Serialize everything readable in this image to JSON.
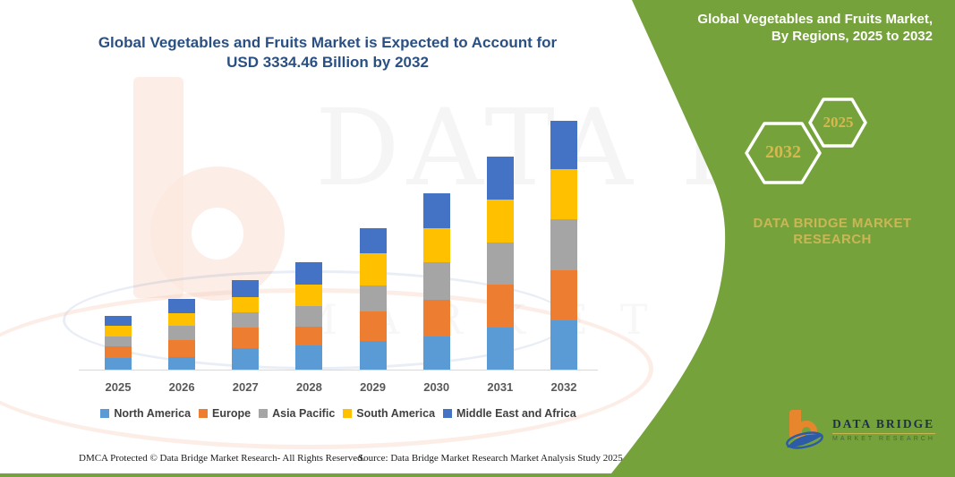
{
  "main_title": {
    "line1": "Global Vegetables and Fruits Market is Expected to Account for",
    "line2": "USD 3334.46 Billion by 2032"
  },
  "panel": {
    "title_line1": "Global Vegetables and Fruits Market,",
    "title_line2": "By Regions, 2025 to 2032",
    "hexagons": [
      {
        "label": "2032"
      },
      {
        "label": "2025"
      }
    ],
    "brand": "DATA BRIDGE MARKET RESEARCH",
    "background_color": "#76a23c",
    "accent_gold": "#c9b654"
  },
  "watermark": {
    "line1": "DATA BRIDGE",
    "line2": "MARKET RESEARCH"
  },
  "logo": {
    "name": "DATA BRIDGE",
    "sub": "MARKET RESEARCH",
    "orange": "#e8862e",
    "blue": "#2c5ba7"
  },
  "footer": {
    "left": "DMCA Protected © Data Bridge Market Research-  All Rights Reserved.",
    "right": "Source: Data Bridge Market Research  Market Analysis Study 2025"
  },
  "chart_data": {
    "type": "bar",
    "stacked": true,
    "title": "Global Vegetables and Fruits Market is Expected to Account for USD 3334.46 Billion by 2032",
    "unit": "USD Billion",
    "note": "series values estimated from bar heights; only the 2032 total (USD 3334.46 Billion) is labeled on the image",
    "categories": [
      "2025",
      "2026",
      "2027",
      "2028",
      "2029",
      "2030",
      "2031",
      "2032"
    ],
    "series": [
      {
        "name": "North America",
        "color": "#5b9bd5",
        "values": [
          156,
          168,
          288,
          324,
          384,
          444,
          564,
          660
        ]
      },
      {
        "name": "Europe",
        "color": "#ed7d31",
        "values": [
          156,
          228,
          276,
          252,
          396,
          492,
          576,
          672
        ]
      },
      {
        "name": "Asia Pacific",
        "color": "#a5a5a5",
        "values": [
          132,
          192,
          204,
          276,
          348,
          504,
          564,
          684
        ]
      },
      {
        "name": "South America",
        "color": "#ffc000",
        "values": [
          144,
          168,
          204,
          288,
          432,
          456,
          576,
          672
        ]
      },
      {
        "name": "Middle East and Africa",
        "color": "#4472c4",
        "values": [
          132,
          192,
          228,
          300,
          336,
          468,
          576,
          646.46
        ]
      }
    ],
    "totals": [
      720,
      948,
      1200,
      1440,
      1896,
      2364,
      2856,
      3334.46
    ],
    "xlabel": "",
    "ylabel": "",
    "ylim": [
      0,
      3400
    ],
    "grid": false,
    "legend_position": "bottom"
  }
}
